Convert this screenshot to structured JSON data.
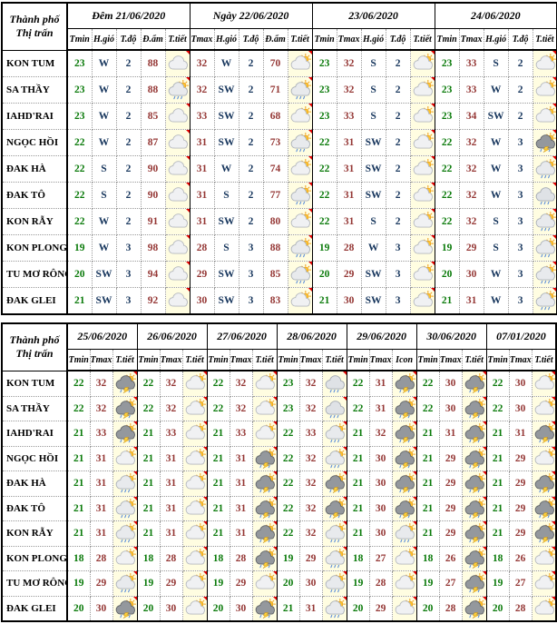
{
  "colors": {
    "tmin": "#0a7a0a",
    "tmax": "#943634",
    "humidity": "#943634",
    "wind": "#17365d",
    "icon_cell_bg": "#fffde1",
    "marker": "#e00000"
  },
  "icon_legend": {
    "cloudy": "grey-white cloud",
    "partly-cloudy": "sun behind cloud",
    "sun-shower": "sun behind cloud with rain",
    "rain": "cloud with rain",
    "thunderstorm": "dark cloud with lightning, rain and sun"
  },
  "table1": {
    "corner": {
      "line1": "Thành phố",
      "line2": "Thị trấn"
    },
    "groups": [
      {
        "title": "Đêm 21/06/2020",
        "cols": [
          "Tmin",
          "H.gió",
          "T.độ",
          "Đ.ẩm",
          "T.tiết"
        ]
      },
      {
        "title": "Ngày 22/06/2020",
        "cols": [
          "Tmax",
          "H.gió",
          "T.độ",
          "Đ.ẩm",
          "T.tiết"
        ]
      },
      {
        "title": "23/06/2020",
        "cols": [
          "Tmin",
          "Tmax",
          "H.gió",
          "T.độ",
          "T.tiết"
        ]
      },
      {
        "title": "24/06/2020",
        "cols": [
          "Tmin",
          "Tmax",
          "H.gió",
          "T.độ",
          "T.tiết"
        ]
      }
    ],
    "rows": [
      {
        "name": "KON TUM",
        "night": [
          "23",
          "W",
          "2",
          "88",
          "cloudy"
        ],
        "day": [
          "32",
          "W",
          "2",
          "70",
          "partly-cloudy"
        ],
        "d23": [
          "23",
          "32",
          "S",
          "2",
          "partly-cloudy"
        ],
        "d24": [
          "23",
          "33",
          "S",
          "2",
          "partly-cloudy"
        ]
      },
      {
        "name": "SA THẦY",
        "night": [
          "23",
          "W",
          "2",
          "88",
          "sun-shower"
        ],
        "day": [
          "32",
          "SW",
          "2",
          "71",
          "sun-shower"
        ],
        "d23": [
          "23",
          "32",
          "S",
          "2",
          "partly-cloudy"
        ],
        "d24": [
          "23",
          "33",
          "W",
          "2",
          "partly-cloudy"
        ]
      },
      {
        "name": "IAHD'RAI",
        "night": [
          "23",
          "W",
          "2",
          "85",
          "cloudy"
        ],
        "day": [
          "33",
          "SW",
          "2",
          "68",
          "partly-cloudy"
        ],
        "d23": [
          "23",
          "33",
          "S",
          "2",
          "partly-cloudy"
        ],
        "d24": [
          "23",
          "34",
          "SW",
          "2",
          "partly-cloudy"
        ]
      },
      {
        "name": "NGỌC HỒI",
        "night": [
          "22",
          "W",
          "2",
          "87",
          "cloudy"
        ],
        "day": [
          "31",
          "SW",
          "2",
          "73",
          "sun-shower"
        ],
        "d23": [
          "22",
          "31",
          "SW",
          "2",
          "partly-cloudy"
        ],
        "d24": [
          "22",
          "32",
          "W",
          "3",
          "thunderstorm"
        ]
      },
      {
        "name": "ĐAK HÀ",
        "night": [
          "22",
          "S",
          "2",
          "90",
          "cloudy"
        ],
        "day": [
          "31",
          "W",
          "2",
          "74",
          "partly-cloudy"
        ],
        "d23": [
          "22",
          "31",
          "SW",
          "2",
          "partly-cloudy"
        ],
        "d24": [
          "22",
          "32",
          "W",
          "3",
          "sun-shower"
        ]
      },
      {
        "name": "ĐAK TÔ",
        "night": [
          "22",
          "S",
          "2",
          "90",
          "cloudy"
        ],
        "day": [
          "31",
          "S",
          "2",
          "77",
          "sun-shower"
        ],
        "d23": [
          "22",
          "31",
          "SW",
          "2",
          "partly-cloudy"
        ],
        "d24": [
          "22",
          "32",
          "W",
          "3",
          "rain"
        ]
      },
      {
        "name": "KON RẪY",
        "night": [
          "22",
          "W",
          "2",
          "91",
          "cloudy"
        ],
        "day": [
          "31",
          "SW",
          "2",
          "80",
          "partly-cloudy"
        ],
        "d23": [
          "22",
          "31",
          "S",
          "2",
          "partly-cloudy"
        ],
        "d24": [
          "22",
          "32",
          "S",
          "3",
          "sun-shower"
        ]
      },
      {
        "name": "KON PLONG",
        "night": [
          "19",
          "W",
          "3",
          "98",
          "cloudy"
        ],
        "day": [
          "28",
          "S",
          "3",
          "88",
          "sun-shower"
        ],
        "d23": [
          "19",
          "28",
          "W",
          "3",
          "partly-cloudy"
        ],
        "d24": [
          "19",
          "29",
          "S",
          "3",
          "sun-shower"
        ]
      },
      {
        "name": "TU MƠ RÔNG",
        "night": [
          "20",
          "SW",
          "3",
          "94",
          "cloudy"
        ],
        "day": [
          "29",
          "SW",
          "3",
          "85",
          "sun-shower"
        ],
        "d23": [
          "20",
          "29",
          "SW",
          "3",
          "partly-cloudy"
        ],
        "d24": [
          "20",
          "30",
          "W",
          "3",
          "sun-shower"
        ]
      },
      {
        "name": "ĐAK GLEI",
        "night": [
          "21",
          "SW",
          "3",
          "92",
          "cloudy"
        ],
        "day": [
          "30",
          "SW",
          "3",
          "83",
          "partly-cloudy"
        ],
        "d23": [
          "21",
          "30",
          "SW",
          "3",
          "partly-cloudy"
        ],
        "d24": [
          "21",
          "31",
          "W",
          "3",
          "sun-shower"
        ]
      }
    ]
  },
  "table2": {
    "corner": {
      "line1": "Thành phố",
      "line2": "Thị trấn"
    },
    "groups": [
      {
        "title": "25/06/2020",
        "cols": [
          "Tmin",
          "Tmax",
          "T.tiết"
        ]
      },
      {
        "title": "26/06/2020",
        "cols": [
          "Tmin",
          "Tmax",
          "T.tiết"
        ]
      },
      {
        "title": "27/06/2020",
        "cols": [
          "Tmin",
          "Tmax",
          "T.tiết"
        ]
      },
      {
        "title": "28/06/2020",
        "cols": [
          "Tmin",
          "Tmax",
          "T.tiết"
        ]
      },
      {
        "title": "29/06/2020",
        "cols": [
          "Tmin",
          "Tmax",
          "Icon"
        ]
      },
      {
        "title": "30/06/2020",
        "cols": [
          "Tmin",
          "Tmax",
          "T.tiết"
        ]
      },
      {
        "title": "07/01/2020",
        "cols": [
          "Tmin",
          "Tmax",
          "T.tiết"
        ]
      }
    ],
    "rows": [
      {
        "name": "KON TUM",
        "days": [
          [
            "22",
            "32",
            "thunderstorm"
          ],
          [
            "22",
            "32",
            "partly-cloudy"
          ],
          [
            "22",
            "32",
            "partly-cloudy"
          ],
          [
            "23",
            "32",
            "rain"
          ],
          [
            "22",
            "31",
            "thunderstorm"
          ],
          [
            "22",
            "30",
            "thunderstorm"
          ],
          [
            "22",
            "30",
            "partly-cloudy"
          ]
        ]
      },
      {
        "name": "SA THẦY",
        "days": [
          [
            "22",
            "32",
            "thunderstorm"
          ],
          [
            "22",
            "32",
            "partly-cloudy"
          ],
          [
            "22",
            "32",
            "partly-cloudy"
          ],
          [
            "23",
            "32",
            "rain"
          ],
          [
            "22",
            "31",
            "thunderstorm"
          ],
          [
            "22",
            "30",
            "thunderstorm"
          ],
          [
            "22",
            "30",
            "partly-cloudy"
          ]
        ]
      },
      {
        "name": "IAHD'RAI",
        "days": [
          [
            "21",
            "33",
            "thunderstorm"
          ],
          [
            "21",
            "33",
            "partly-cloudy"
          ],
          [
            "21",
            "33",
            "partly-cloudy"
          ],
          [
            "22",
            "33",
            "sun-shower"
          ],
          [
            "21",
            "32",
            "thunderstorm"
          ],
          [
            "21",
            "31",
            "thunderstorm"
          ],
          [
            "21",
            "31",
            "thunderstorm"
          ]
        ]
      },
      {
        "name": "NGỌC HỒI",
        "days": [
          [
            "21",
            "31",
            "partly-cloudy"
          ],
          [
            "21",
            "31",
            "partly-cloudy"
          ],
          [
            "21",
            "31",
            "thunderstorm"
          ],
          [
            "22",
            "32",
            "sun-shower"
          ],
          [
            "21",
            "30",
            "thunderstorm"
          ],
          [
            "21",
            "29",
            "thunderstorm"
          ],
          [
            "21",
            "29",
            "partly-cloudy"
          ]
        ]
      },
      {
        "name": "ĐAK HÀ",
        "days": [
          [
            "21",
            "31",
            "sun-shower"
          ],
          [
            "21",
            "31",
            "partly-cloudy"
          ],
          [
            "21",
            "31",
            "thunderstorm"
          ],
          [
            "22",
            "32",
            "thunderstorm"
          ],
          [
            "21",
            "30",
            "thunderstorm"
          ],
          [
            "21",
            "29",
            "thunderstorm"
          ],
          [
            "21",
            "29",
            "thunderstorm"
          ]
        ]
      },
      {
        "name": "ĐAK TÔ",
        "days": [
          [
            "21",
            "31",
            "sun-shower"
          ],
          [
            "21",
            "31",
            "partly-cloudy"
          ],
          [
            "21",
            "31",
            "thunderstorm"
          ],
          [
            "22",
            "32",
            "thunderstorm"
          ],
          [
            "21",
            "30",
            "thunderstorm"
          ],
          [
            "21",
            "29",
            "thunderstorm"
          ],
          [
            "21",
            "29",
            "thunderstorm"
          ]
        ]
      },
      {
        "name": "KON RẪY",
        "days": [
          [
            "21",
            "31",
            "sun-shower"
          ],
          [
            "21",
            "31",
            "partly-cloudy"
          ],
          [
            "21",
            "31",
            "thunderstorm"
          ],
          [
            "22",
            "32",
            "sun-shower"
          ],
          [
            "21",
            "30",
            "sun-shower"
          ],
          [
            "21",
            "29",
            "thunderstorm"
          ],
          [
            "21",
            "29",
            "thunderstorm"
          ]
        ]
      },
      {
        "name": "KON PLONG",
        "days": [
          [
            "18",
            "28",
            "partly-cloudy"
          ],
          [
            "18",
            "28",
            "partly-cloudy"
          ],
          [
            "18",
            "28",
            "thunderstorm"
          ],
          [
            "19",
            "29",
            "sun-shower"
          ],
          [
            "18",
            "27",
            "partly-cloudy"
          ],
          [
            "18",
            "26",
            "thunderstorm"
          ],
          [
            "18",
            "26",
            "partly-cloudy"
          ]
        ]
      },
      {
        "name": "TU MƠ RÔNG",
        "days": [
          [
            "19",
            "29",
            "sun-shower"
          ],
          [
            "19",
            "29",
            "partly-cloudy"
          ],
          [
            "19",
            "29",
            "partly-cloudy"
          ],
          [
            "20",
            "30",
            "sun-shower"
          ],
          [
            "19",
            "28",
            "partly-cloudy"
          ],
          [
            "19",
            "27",
            "thunderstorm"
          ],
          [
            "19",
            "27",
            "partly-cloudy"
          ]
        ]
      },
      {
        "name": "ĐAK GLEI",
        "days": [
          [
            "20",
            "30",
            "thunderstorm"
          ],
          [
            "20",
            "30",
            "partly-cloudy"
          ],
          [
            "20",
            "30",
            "thunderstorm"
          ],
          [
            "21",
            "31",
            "sun-shower"
          ],
          [
            "20",
            "29",
            "partly-cloudy"
          ],
          [
            "20",
            "28",
            "thunderstorm"
          ],
          [
            "20",
            "28",
            "partly-cloudy"
          ]
        ]
      }
    ]
  }
}
